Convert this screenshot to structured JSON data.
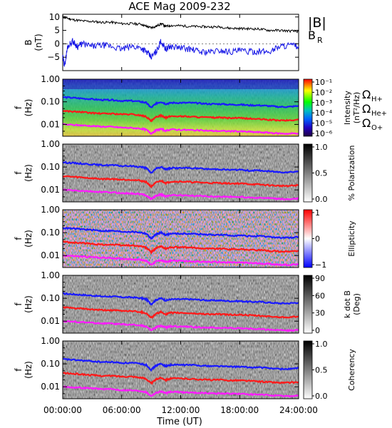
{
  "title": "ACE Mag 2009-232",
  "colors": {
    "bmag": "#000000",
    "br": "#1414e6",
    "h_gyro": "#1a1aff",
    "he_gyro": "#ff1a1a",
    "o_gyro": "#ff1aff",
    "legend_h": "#1a1aff",
    "legend_he": "#ff1a1a",
    "legend_o": "#ff1aff"
  },
  "chart_data": [
    {
      "type": "line",
      "panel": "magnetic-field",
      "ylabel": "B (nT)",
      "ylim": [
        -10,
        11
      ],
      "yticks": [
        "10",
        "5",
        "0",
        "−5"
      ],
      "legend": [
        {
          "label": "|B|",
          "color": "#000000"
        },
        {
          "label": "B",
          "sub": "R",
          "color": "#1414e6"
        }
      ],
      "series": [
        {
          "name": "|B|",
          "x": [
            0,
            0.5,
            1,
            2,
            3,
            4,
            5,
            6,
            7,
            8,
            8.5,
            9,
            9.5,
            10,
            10.5,
            11,
            12,
            13,
            14,
            15,
            16,
            17,
            18,
            19,
            20,
            21,
            22,
            23,
            24
          ],
          "values": [
            10,
            9.5,
            9,
            8.5,
            8.3,
            8,
            8,
            7.5,
            7.5,
            7.3,
            6.5,
            6,
            6.5,
            7.5,
            6.5,
            6.8,
            6.7,
            6.5,
            6.4,
            6.3,
            6.3,
            5.8,
            5.7,
            5.6,
            5.5,
            5,
            5,
            4.8,
            4.6
          ]
        },
        {
          "name": "B_R",
          "x": [
            0,
            0.2,
            0.5,
            1,
            1.5,
            2,
            3,
            4,
            5,
            6,
            7,
            8,
            8.5,
            9,
            9.5,
            10,
            10.5,
            11,
            12,
            13,
            14,
            15,
            16,
            17,
            18,
            19,
            20,
            21,
            22,
            23,
            24
          ],
          "values": [
            -5,
            -8,
            -1,
            1,
            -1,
            0,
            -1,
            -0.5,
            -1,
            -2,
            -1,
            -1.5,
            -3,
            -5,
            -3,
            1,
            -2,
            -1,
            -1.5,
            -2,
            -3,
            -3,
            -2.5,
            -3,
            -2.5,
            -3,
            -2.8,
            -3,
            -1,
            -0.5,
            -1
          ]
        }
      ]
    },
    {
      "type": "heatmap",
      "panel": "intensity",
      "ylabel": "f (Hz)",
      "ylim": [
        0.003,
        1.0
      ],
      "yticks": [
        "1.00",
        "0.10",
        "0.01"
      ],
      "colorbar": {
        "title": "Intensity",
        "unit": "(nT²/Hz)",
        "ticks": [
          "10⁻¹",
          "10⁻²",
          "10⁻³",
          "10⁻⁴",
          "10⁻⁵",
          "10⁻⁶"
        ]
      },
      "legend": [
        {
          "label": "Ω",
          "sub": "H+"
        },
        {
          "label": "Ω",
          "sub": "He+"
        },
        {
          "label": "Ω",
          "sub": "O+"
        }
      ]
    },
    {
      "type": "heatmap",
      "panel": "polarization",
      "ylabel": "f (Hz)",
      "yticks": [
        "1.00",
        "0.10",
        "0.01"
      ],
      "colorbar": {
        "title": "% Polarization",
        "ticks": [
          "1.0",
          "0.5",
          "0.0"
        ]
      }
    },
    {
      "type": "heatmap",
      "panel": "ellipticity",
      "ylabel": "f (Hz)",
      "yticks": [
        "1.00",
        "0.10",
        "0.01"
      ],
      "colorbar": {
        "title": "Ellipticity",
        "ticks": [
          "1",
          "0",
          "−1"
        ]
      }
    },
    {
      "type": "heatmap",
      "panel": "k-dot-b",
      "ylabel": "f (Hz)",
      "yticks": [
        "1.00",
        "0.10",
        "0.01"
      ],
      "colorbar": {
        "title": "k dot B",
        "unit": "(Deg)",
        "ticks": [
          "90",
          "60",
          "30",
          "0"
        ]
      }
    },
    {
      "type": "heatmap",
      "panel": "coherency",
      "ylabel": "f (Hz)",
      "yticks": [
        "1.00",
        "0.10",
        "0.01"
      ],
      "colorbar": {
        "title": "Coherency",
        "ticks": [
          "1.0",
          "0.5",
          "0.0"
        ]
      },
      "xlabel": "Time (UT)",
      "xticks": [
        "00:00:00",
        "06:00:00",
        "12:00:00",
        "18:00:00",
        "24:00:00"
      ],
      "xlim": [
        0,
        24
      ]
    }
  ],
  "gyro_lines": {
    "x": [
      0,
      1,
      2,
      3,
      4,
      5,
      6,
      7,
      8,
      8.5,
      9,
      9.5,
      10,
      10.5,
      11,
      12,
      13,
      14,
      15,
      16,
      17,
      18,
      19,
      20,
      21,
      22,
      23,
      24
    ],
    "h_plus": [
      0.16,
      0.15,
      0.14,
      0.13,
      0.12,
      0.12,
      0.11,
      0.11,
      0.1,
      0.09,
      0.055,
      0.085,
      0.1,
      0.08,
      0.09,
      0.09,
      0.09,
      0.085,
      0.08,
      0.08,
      0.075,
      0.075,
      0.07,
      0.07,
      0.065,
      0.06,
      0.06,
      0.065
    ],
    "he_plus": [
      0.04,
      0.037,
      0.035,
      0.032,
      0.03,
      0.03,
      0.028,
      0.028,
      0.025,
      0.022,
      0.014,
      0.021,
      0.025,
      0.02,
      0.023,
      0.023,
      0.022,
      0.021,
      0.02,
      0.02,
      0.019,
      0.019,
      0.018,
      0.017,
      0.016,
      0.015,
      0.015,
      0.016
    ],
    "o_plus": [
      0.01,
      0.0095,
      0.009,
      0.0085,
      0.008,
      0.0078,
      0.0072,
      0.007,
      0.0065,
      0.0058,
      0.004,
      0.0055,
      0.0063,
      0.0052,
      0.006,
      0.0058,
      0.0056,
      0.0054,
      0.0052,
      0.0051,
      0.005,
      0.0049,
      0.0047,
      0.0045,
      0.0043,
      0.004,
      0.0039,
      0.0041
    ]
  }
}
